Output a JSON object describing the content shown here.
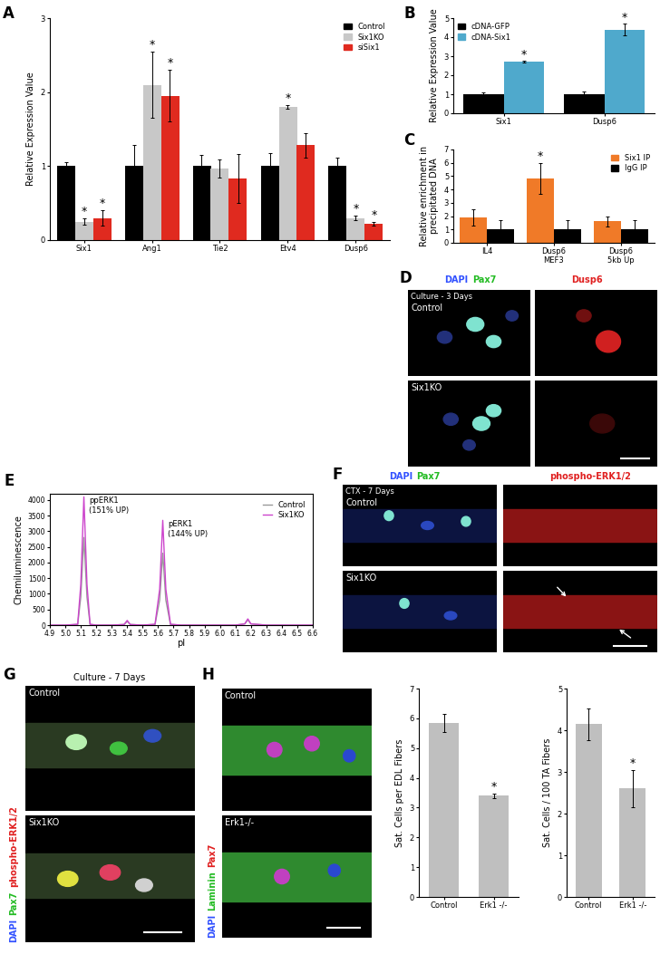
{
  "panel_labels": [
    "A",
    "B",
    "C",
    "D",
    "E",
    "F",
    "G",
    "H"
  ],
  "chart_data": [
    {
      "type": "bar",
      "ylabel": "Relative Expression Value",
      "categories": [
        "Six1",
        "Ang1",
        "Tie2",
        "Etv4",
        "Dusp6"
      ],
      "ylim": [
        0,
        3
      ],
      "yticks": [
        0,
        1,
        2,
        3
      ],
      "legend": "upper right",
      "series": [
        {
          "name": "Control",
          "color": "#000000",
          "values": [
            1,
            1,
            1,
            1,
            1
          ],
          "errors": [
            0.05,
            0.28,
            0.15,
            0.17,
            0.12
          ]
        },
        {
          "name": "Six1KO",
          "color": "#c8c8c8",
          "values": [
            0.25,
            2.1,
            0.97,
            1.8,
            0.3
          ],
          "errors": [
            0.04,
            0.45,
            0.12,
            0.02,
            0.03
          ]
        },
        {
          "name": "siSix1",
          "color": "#e02a1f",
          "values": [
            0.3,
            1.95,
            0.83,
            1.28,
            0.22
          ],
          "errors": [
            0.1,
            0.35,
            0.33,
            0.17,
            0.02
          ]
        }
      ],
      "annotations": [
        {
          "text": "*",
          "category": "Six1",
          "series": "Six1KO"
        },
        {
          "text": "*",
          "category": "Six1",
          "series": "siSix1"
        },
        {
          "text": "*",
          "category": "Ang1",
          "series": "Six1KO"
        },
        {
          "text": "*",
          "category": "Ang1",
          "series": "siSix1"
        },
        {
          "text": "*",
          "category": "Etv4",
          "series": "Six1KO"
        },
        {
          "text": "*",
          "category": "Dusp6",
          "series": "Six1KO"
        },
        {
          "text": "*",
          "category": "Dusp6",
          "series": "siSix1"
        }
      ]
    },
    {
      "type": "bar",
      "ylabel": "Relative Expression Value",
      "categories": [
        "Six1",
        "Dusp6"
      ],
      "ylim": [
        0,
        5
      ],
      "yticks": [
        0,
        1,
        2,
        3,
        4,
        5
      ],
      "legend": "upper left",
      "series": [
        {
          "name": "cDNA-GFP",
          "color": "#000000",
          "values": [
            1,
            1
          ],
          "errors": [
            0.08,
            0.13
          ]
        },
        {
          "name": "cDNA-Six1",
          "color": "#4fa9cc",
          "values": [
            2.7,
            4.4
          ],
          "errors": [
            0.05,
            0.3
          ]
        }
      ],
      "annotations": [
        {
          "text": "*",
          "category": "Six1",
          "series": "cDNA-Six1"
        },
        {
          "text": "*",
          "category": "Dusp6",
          "series": "cDNA-Six1"
        }
      ]
    },
    {
      "type": "bar",
      "ylabel": "Relative enrichment in\nprecipitated DNA",
      "categories": [
        "IL4",
        "Dusp6\nMEF3",
        "Dusp6\n5kb Up"
      ],
      "ylim": [
        0,
        7
      ],
      "yticks": [
        0,
        1,
        2,
        3,
        4,
        5,
        6,
        7
      ],
      "legend": "upper right",
      "series": [
        {
          "name": "Six1 IP",
          "color": "#f07a28",
          "values": [
            1.9,
            4.85,
            1.6
          ],
          "errors": [
            0.6,
            1.15,
            0.35
          ]
        },
        {
          "name": "IgG IP",
          "color": "#000000",
          "values": [
            1,
            1,
            1
          ],
          "errors": [
            0.7,
            0.7,
            0.7
          ]
        }
      ],
      "annotations": [
        {
          "text": "*",
          "category": "Dusp6\nMEF3",
          "series": "Six1 IP"
        }
      ]
    },
    {
      "type": "line",
      "xlabel": "pI",
      "ylabel": "Chemiluminescence",
      "x": [
        4.9,
        5.0,
        5.08,
        5.1,
        5.12,
        5.14,
        5.16,
        5.2,
        5.3,
        5.38,
        5.4,
        5.42,
        5.5,
        5.58,
        5.61,
        5.63,
        5.65,
        5.68,
        5.75,
        5.9,
        6.1,
        6.16,
        6.18,
        6.2,
        6.3,
        6.4,
        6.5,
        6.6
      ],
      "xlim": [
        4.9,
        6.6
      ],
      "xticks": [
        4.9,
        5.0,
        5.1,
        5.2,
        5.3,
        5.4,
        5.5,
        5.6,
        5.7,
        5.8,
        5.9,
        6.0,
        6.1,
        6.2,
        6.3,
        6.4,
        6.5,
        6.6
      ],
      "ylim": [
        0,
        4200
      ],
      "yticks": [
        0,
        500,
        1000,
        1500,
        2000,
        2500,
        3000,
        3500,
        4000
      ],
      "legend": "upper right",
      "series": [
        {
          "name": "Control",
          "color": "#999999",
          "values": [
            0,
            0,
            20,
            900,
            2800,
            900,
            20,
            0,
            0,
            20,
            120,
            20,
            0,
            20,
            800,
            2300,
            800,
            20,
            0,
            0,
            0,
            40,
            170,
            40,
            0,
            0,
            0,
            0
          ]
        },
        {
          "name": "Six1KO",
          "color": "#cc44cc",
          "values": [
            0,
            0,
            30,
            1300,
            4100,
            1300,
            30,
            0,
            0,
            20,
            150,
            20,
            0,
            30,
            1150,
            3350,
            1150,
            30,
            0,
            0,
            0,
            40,
            200,
            40,
            0,
            0,
            0,
            0
          ]
        }
      ],
      "annotations": [
        {
          "text": "ppERK1\n(151% UP)",
          "x": 5.12,
          "y": 4100
        },
        {
          "text": "pERK1\n(144% UP)",
          "x": 5.63,
          "y": 3350
        }
      ]
    },
    {
      "type": "bar",
      "ylabel": "Sat. Cells per EDL Fibers",
      "categories": [
        "Control",
        "Erk1 -/-"
      ],
      "values": [
        5.85,
        3.4
      ],
      "errors": [
        0.3,
        0.08
      ],
      "color": "#bfbfbf",
      "ylim": [
        0,
        7
      ],
      "yticks": [
        0,
        1,
        2,
        3,
        4,
        5,
        6,
        7
      ],
      "annotations": [
        {
          "text": "*",
          "category": "Erk1 -/-"
        }
      ]
    },
    {
      "type": "bar",
      "ylabel": "Sat. Cells / 100 TA Fibers",
      "categories": [
        "Control",
        "Erk1 -/-"
      ],
      "values": [
        4.15,
        2.6
      ],
      "errors": [
        0.38,
        0.45
      ],
      "color": "#bfbfbf",
      "ylim": [
        0,
        5
      ],
      "yticks": [
        0,
        1,
        2,
        3,
        4,
        5
      ],
      "annotations": [
        {
          "text": "*",
          "category": "Erk1 -/-"
        }
      ]
    }
  ],
  "image_panels": [
    {
      "column_headers": [
        [
          {
            "text": "DAPI",
            "color": "#3050ff"
          },
          {
            "text": "Pax7",
            "color": "#22bb22"
          }
        ],
        [
          {
            "text": "Dusp6",
            "color": "#e02020"
          }
        ]
      ],
      "row_labels": [
        "Control",
        "Six1KO"
      ],
      "condition": "Culture - 3 Days"
    },
    {
      "column_headers": [
        [
          {
            "text": "DAPI",
            "color": "#3050ff"
          },
          {
            "text": "Pax7",
            "color": "#22bb22"
          }
        ],
        [
          {
            "text": "phospho-ERK1/2",
            "color": "#e02020"
          }
        ]
      ],
      "row_labels": [
        "Control",
        "Six1KO"
      ],
      "condition": "CTX - 7 Days"
    },
    {
      "row_labels": [
        "Control",
        "Six1KO"
      ],
      "condition": "Culture - 7 Days",
      "channels": [
        {
          "text": "DAPI",
          "color": "#3050ff"
        },
        {
          "text": "Pax7",
          "color": "#22bb22"
        },
        {
          "text": "phospho-ERK1/2",
          "color": "#e02020"
        }
      ]
    },
    {
      "row_labels": [
        "Control",
        "Erk1-/-"
      ],
      "channels": [
        {
          "text": "DAPI",
          "color": "#3050ff"
        },
        {
          "text": "Laminin",
          "color": "#22bb22"
        },
        {
          "text": "Pax7",
          "color": "#e02020"
        }
      ]
    }
  ]
}
